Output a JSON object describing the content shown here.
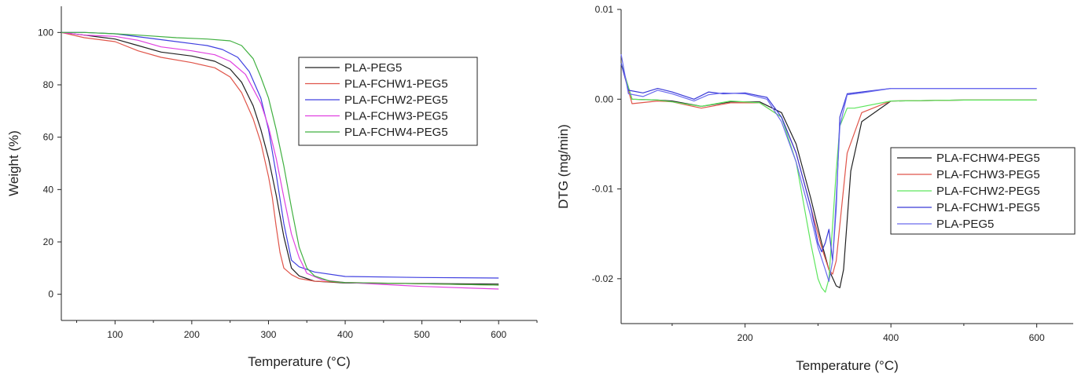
{
  "chart_data": [
    {
      "type": "line",
      "xlabel": "Temperature (°C)",
      "ylabel": "Weight (%)",
      "xlim": [
        30,
        650
      ],
      "ylim": [
        -10,
        110
      ],
      "xticks": [
        100,
        200,
        300,
        400,
        500,
        600
      ],
      "yticks": [
        0,
        20,
        40,
        60,
        80,
        100
      ],
      "grid": false,
      "legend_position": "top-right",
      "series": [
        {
          "name": "PLA-PEG5",
          "color": "#222222",
          "x": [
            30,
            60,
            100,
            130,
            160,
            200,
            230,
            250,
            265,
            280,
            290,
            300,
            310,
            320,
            330,
            340,
            360,
            400,
            500,
            600
          ],
          "y": [
            100,
            99,
            97.5,
            95,
            92.5,
            91,
            89,
            86,
            81,
            72,
            63,
            52,
            38,
            22,
            10,
            7,
            5,
            4.3,
            4.1,
            3.9
          ]
        },
        {
          "name": "PLA-FCHW1-PEG5",
          "color": "#e0554a",
          "x": [
            30,
            60,
            100,
            130,
            160,
            200,
            230,
            250,
            265,
            280,
            290,
            300,
            305,
            310,
            315,
            320,
            330,
            340,
            360,
            400,
            500,
            600
          ],
          "y": [
            100,
            98,
            96.5,
            93,
            90.5,
            88.5,
            86.5,
            83,
            77,
            67,
            58,
            45,
            37,
            26,
            16,
            10,
            7.5,
            6,
            5,
            4.5,
            4,
            3.5
          ]
        },
        {
          "name": "PLA-FCHW2-PEG5",
          "color": "#4040e0",
          "x": [
            30,
            60,
            100,
            140,
            180,
            220,
            240,
            260,
            275,
            290,
            300,
            310,
            320,
            330,
            340,
            360,
            400,
            500,
            600
          ],
          "y": [
            100,
            100,
            99.5,
            98,
            96.5,
            95,
            93.5,
            90.5,
            85,
            75,
            63,
            46,
            27,
            13,
            10.5,
            8.5,
            6.8,
            6.4,
            6.2
          ]
        },
        {
          "name": "PLA-FCHW3-PEG5",
          "color": "#e040e0",
          "x": [
            30,
            60,
            100,
            130,
            160,
            200,
            230,
            250,
            270,
            290,
            300,
            310,
            320,
            330,
            340,
            350,
            370,
            400,
            500,
            600
          ],
          "y": [
            100,
            99,
            98.5,
            97,
            94.5,
            93,
            91.5,
            89,
            84,
            73,
            64,
            52,
            37,
            23,
            14,
            8,
            5.5,
            4.5,
            3,
            2
          ]
        },
        {
          "name": "PLA-FCHW4-PEG5",
          "color": "#40b040",
          "x": [
            30,
            60,
            100,
            140,
            180,
            220,
            250,
            265,
            280,
            290,
            300,
            310,
            320,
            330,
            340,
            350,
            360,
            380,
            400,
            500,
            600
          ],
          "y": [
            100,
            100,
            99.5,
            98.8,
            98,
            97.5,
            96.8,
            95,
            90,
            83,
            75,
            63,
            49,
            33,
            18,
            10,
            7,
            5,
            4.5,
            4,
            3.5
          ]
        }
      ]
    },
    {
      "type": "line",
      "xlabel": "Temperature (°C)",
      "ylabel": "DTG (mg/min)",
      "xlim": [
        30,
        650
      ],
      "ylim": [
        -0.025,
        0.01
      ],
      "xticks": [
        200,
        400,
        600
      ],
      "yticks": [
        0.01,
        0.0,
        -0.01,
        -0.02
      ],
      "ytick_labels": [
        "0.01",
        "0.00",
        "-0.01",
        "-0.02"
      ],
      "grid": false,
      "legend_position": "center-right",
      "series": [
        {
          "name": "PLA-FCHW4-PEG5",
          "color": "#222222",
          "x": [
            30,
            45,
            80,
            100,
            140,
            180,
            220,
            250,
            270,
            290,
            305,
            315,
            325,
            330,
            335,
            345,
            360,
            400,
            500,
            600
          ],
          "y": [
            0.004,
            0.0,
            -0.0001,
            -0.0002,
            -0.0008,
            -0.0003,
            -0.0003,
            -0.0015,
            -0.005,
            -0.011,
            -0.016,
            -0.019,
            -0.0208,
            -0.021,
            -0.019,
            -0.008,
            -0.0025,
            -0.0002,
            -0.0001,
            -0.0001
          ]
        },
        {
          "name": "PLA-FCHW3-PEG5",
          "color": "#e0554a",
          "x": [
            30,
            45,
            80,
            100,
            140,
            180,
            220,
            250,
            270,
            290,
            305,
            315,
            320,
            325,
            330,
            340,
            360,
            400,
            500,
            600
          ],
          "y": [
            0.004,
            -0.0005,
            -0.0002,
            -0.0003,
            -0.001,
            -0.0004,
            -0.0004,
            -0.002,
            -0.006,
            -0.012,
            -0.0165,
            -0.019,
            -0.0195,
            -0.018,
            -0.014,
            -0.006,
            -0.0015,
            -0.0002,
            -0.0001,
            -0.0001
          ]
        },
        {
          "name": "PLA-FCHW2-PEG5",
          "color": "#5ee65e",
          "x": [
            30,
            45,
            80,
            100,
            140,
            180,
            220,
            250,
            270,
            290,
            300,
            305,
            310,
            315,
            320,
            325,
            330,
            340,
            350,
            400,
            500,
            600
          ],
          "y": [
            0.004,
            0.0,
            -0.0001,
            -0.0003,
            -0.0008,
            -0.0002,
            -0.0004,
            -0.002,
            -0.007,
            -0.016,
            -0.02,
            -0.021,
            -0.0215,
            -0.02,
            -0.014,
            -0.008,
            -0.003,
            -0.001,
            -0.001,
            -0.0002,
            -0.0001,
            -0.0001
          ]
        },
        {
          "name": "PLA-FCHW1-PEG5",
          "color": "#3a3ad8",
          "x": [
            30,
            40,
            60,
            80,
            100,
            130,
            150,
            170,
            200,
            230,
            250,
            270,
            290,
            300,
            305,
            310,
            315,
            320,
            325,
            330,
            340,
            360,
            400,
            500,
            600
          ],
          "y": [
            0.004,
            0.001,
            0.0007,
            0.0012,
            0.0008,
            0.0,
            0.0008,
            0.0006,
            0.0007,
            0.0002,
            -0.002,
            -0.006,
            -0.012,
            -0.016,
            -0.017,
            -0.016,
            -0.0145,
            -0.018,
            -0.012,
            -0.002,
            0.0006,
            0.0008,
            0.0012,
            0.0012,
            0.0012
          ]
        },
        {
          "name": "PLA-PEG5",
          "color": "#6a6aee",
          "x": [
            30,
            40,
            60,
            80,
            100,
            130,
            150,
            170,
            200,
            230,
            250,
            270,
            290,
            300,
            310,
            315,
            320,
            325,
            330,
            340,
            360,
            400,
            500,
            600
          ],
          "y": [
            0.005,
            0.0006,
            0.0003,
            0.001,
            0.0006,
            -0.0002,
            0.0005,
            0.0007,
            0.0006,
            0.0,
            -0.0025,
            -0.007,
            -0.013,
            -0.0165,
            -0.019,
            -0.0203,
            -0.018,
            -0.011,
            -0.003,
            0.0005,
            0.0007,
            0.0012,
            0.0012,
            0.0012
          ]
        }
      ]
    }
  ]
}
